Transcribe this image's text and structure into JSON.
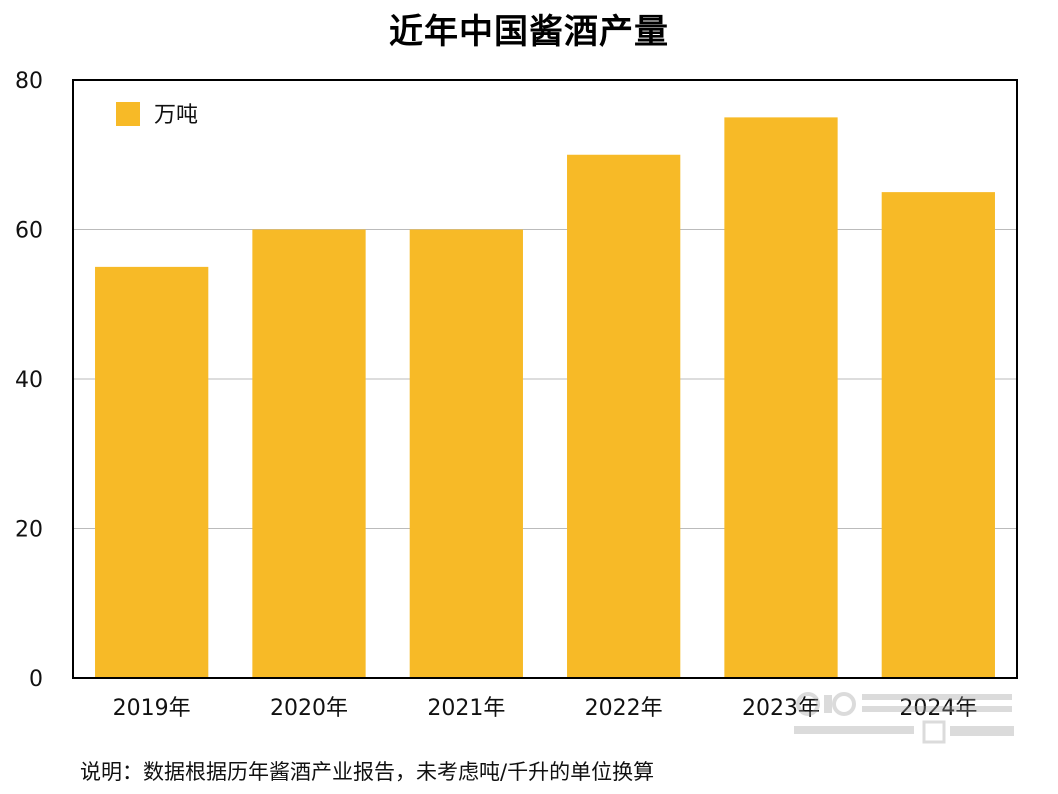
{
  "chart_data": {
    "type": "bar",
    "title": "近年中国酱酒产量",
    "categories": [
      "2019年",
      "2020年",
      "2021年",
      "2022年",
      "2023年",
      "2024年"
    ],
    "series": [
      {
        "name": "万吨",
        "values": [
          55,
          60,
          60,
          70,
          75,
          65
        ],
        "color": "#F7BA27"
      }
    ],
    "ylim": [
      0,
      80
    ],
    "yticks": [
      0,
      20,
      40,
      60,
      80
    ],
    "grid": true,
    "legend_position": "top-left",
    "xlabel": "",
    "ylabel": ""
  },
  "footnote": "说明：数据根据历年酱酒产业报告，未考虑吨/千升的单位换算",
  "colors": {
    "bar": "#F7BA27",
    "grid": "#BBBBBB",
    "axis": "#000000"
  }
}
